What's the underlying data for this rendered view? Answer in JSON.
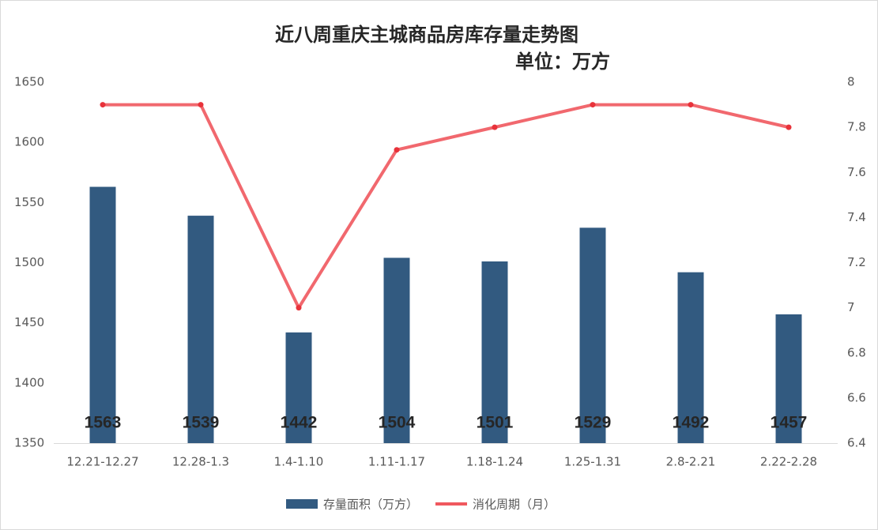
{
  "chart_data": {
    "type": "bar_line",
    "title": "近八周重庆主城商品房库存量走势图",
    "subtitle": "单位：万方",
    "categories": [
      "12.21-12.27",
      "12.28-1.3",
      "1.4-1.10",
      "1.11-1.17",
      "1.18-1.24",
      "1.25-1.31",
      "2.8-2.21",
      "2.22-2.28"
    ],
    "series": [
      {
        "name": "存量面积（万方）",
        "type": "bar",
        "color": "#325a80",
        "values": [
          1563,
          1539,
          1442,
          1504,
          1501,
          1529,
          1492,
          1457
        ]
      },
      {
        "name": "消化周期（月）",
        "type": "line",
        "axis": "y2",
        "color": "#f0585e",
        "values": [
          7.9,
          7.9,
          7.0,
          7.7,
          7.8,
          7.9,
          7.9,
          7.8
        ]
      }
    ],
    "ylim": [
      1350,
      1650
    ],
    "yticks": [
      1350,
      1400,
      1450,
      1500,
      1550,
      1600,
      1650
    ],
    "y2lim": [
      6.4,
      8
    ],
    "y2ticks": [
      6.4,
      6.6,
      6.8,
      7,
      7.2,
      7.4,
      7.6,
      7.8,
      8
    ],
    "grid": false,
    "legend": "bottom"
  }
}
